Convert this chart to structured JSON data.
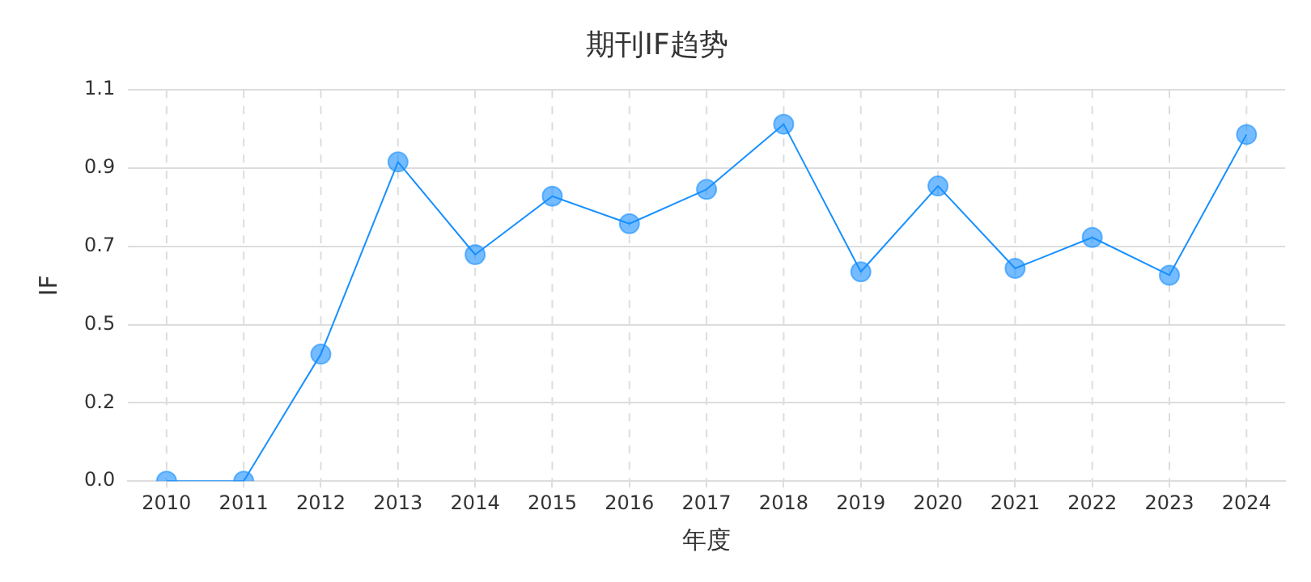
{
  "chart_data": {
    "type": "line",
    "title": "期刊IF趋势",
    "xlabel": "年度",
    "ylabel": "IF",
    "categories": [
      "2010",
      "2011",
      "2012",
      "2013",
      "2014",
      "2015",
      "2016",
      "2017",
      "2018",
      "2019",
      "2020",
      "2021",
      "2022",
      "2023",
      "2024"
    ],
    "series": [
      {
        "color": "#1890ff",
        "values": [
          0,
          0,
          0.37,
          0.93,
          0.66,
          0.83,
          0.75,
          0.85,
          1.04,
          0.61,
          0.86,
          0.62,
          0.71,
          0.6,
          1.01
        ]
      }
    ],
    "ylim": [
      0,
      1.14
    ],
    "yticks": [
      {
        "value": 0,
        "label": "0.0"
      },
      {
        "value": 0.228,
        "label": "0.2"
      },
      {
        "value": 0.456,
        "label": "0.5"
      },
      {
        "value": 0.684,
        "label": "0.7"
      },
      {
        "value": 0.912,
        "label": "0.9"
      },
      {
        "value": 1.14,
        "label": "1.1"
      }
    ],
    "grid": true,
    "marker": "circle",
    "line_style": "solid"
  }
}
